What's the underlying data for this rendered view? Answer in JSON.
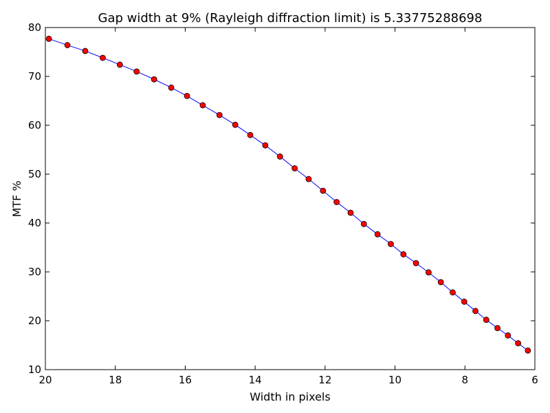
{
  "chart_data": {
    "type": "line",
    "title": "Gap width at 9% (Rayleigh diffraction limit) is 5.33775288698",
    "xlabel": "Width in pixels",
    "ylabel": "MTF %",
    "xlim": [
      20,
      6
    ],
    "ylim": [
      10,
      80
    ],
    "x_reversed": true,
    "xticks": [
      20,
      18,
      16,
      14,
      12,
      10,
      8,
      6
    ],
    "yticks": [
      10,
      20,
      30,
      40,
      50,
      60,
      70,
      80
    ],
    "grid": false,
    "line_color": "#0000ff",
    "marker_color": "#ff0000",
    "marker_edge_color": "#000000",
    "series": [
      {
        "x": [
          19.9,
          19.37,
          18.86,
          18.36,
          17.87,
          17.39,
          16.89,
          16.4,
          15.95,
          15.5,
          15.02,
          14.57,
          14.14,
          13.71,
          13.29,
          12.87,
          12.47,
          12.06,
          11.67,
          11.27,
          10.89,
          10.5,
          10.12,
          9.76,
          9.4,
          9.04,
          8.69,
          8.35,
          8.02,
          7.7,
          7.39,
          7.07,
          6.77,
          6.48,
          6.2
        ],
        "y": [
          77.7,
          76.4,
          75.2,
          73.8,
          72.4,
          71.0,
          69.4,
          67.7,
          66.0,
          64.1,
          62.1,
          60.1,
          58.0,
          55.9,
          53.6,
          51.2,
          49.0,
          46.6,
          44.3,
          42.1,
          39.8,
          37.7,
          35.7,
          33.6,
          31.8,
          29.9,
          27.9,
          25.8,
          23.9,
          22.0,
          20.2,
          18.5,
          17.0,
          15.4,
          13.9
        ]
      }
    ]
  }
}
